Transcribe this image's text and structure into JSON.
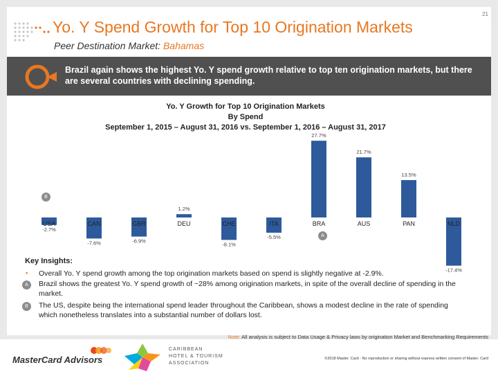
{
  "page_number": "21",
  "title": "Yo. Y Spend Growth for Top 10 Origination Markets",
  "subtitle_label": "Peer Destination Market:",
  "subtitle_value": "Bahamas",
  "banner_text": "Brazil again shows the highest Yo. Y spend growth relative to top ten origination markets, but there are several countries with declining spending.",
  "chart_data": {
    "type": "bar",
    "title_lines": [
      "Yo. Y Growth for Top 10 Origination Markets",
      "By Spend",
      "September 1, 2015 – August 31, 2016 vs. September 1, 2016 – August 31, 2017"
    ],
    "categories": [
      "USA",
      "CAN",
      "GBR",
      "DEU",
      "CHE",
      "ITA",
      "BRA",
      "AUS",
      "PAN",
      "NLD"
    ],
    "values": [
      -2.7,
      -7.6,
      -6.9,
      1.2,
      -8.1,
      -5.5,
      27.7,
      21.7,
      13.5,
      -17.4
    ],
    "labels": [
      "-2.7%",
      "-7.6%",
      "-6.9%",
      "1.2%",
      "-8.1%",
      "-5.5%",
      "27.7%",
      "21.7%",
      "13.5%",
      "-17.4%"
    ],
    "bar_color": "#2e5a9c",
    "ylim": [
      -18,
      28
    ],
    "annotations": [
      {
        "category": "USA",
        "marker": "B"
      },
      {
        "category": "BRA",
        "marker": "A"
      }
    ]
  },
  "insights": {
    "title": "Key Insights:",
    "items": [
      {
        "marker": "▪",
        "text": "Overall Yo. Y spend growth among the top origination markets based on spend is slightly negative at -2.9%."
      },
      {
        "marker": "A",
        "text": "Brazil shows the greatest Yo. Y spend growth of ~28% among origination markets, in spite of the overall decline of spending in the market."
      },
      {
        "marker": "B",
        "text": "The US, despite being the international spend leader throughout the Caribbean, shows a modest decline in the rate of spending which nonetheless translates into a substantial number of dollars lost."
      }
    ]
  },
  "note_label": "Note:",
  "note_text": "All analysis is subject to Data Usage & Privacy laws by origination Market and Benchmarking Requirements",
  "copyright": "©2018 Master. Card - No reproduction or sharing without express written consent of Master. Card",
  "logo_text": "MasterCard Advisors",
  "chta_lines": [
    "CARIBBEAN",
    "HOTEL & TOURISM",
    "ASSOCIATION"
  ],
  "colors": {
    "accent": "#e87722",
    "banner": "#505050",
    "bar": "#2e5a9c"
  }
}
